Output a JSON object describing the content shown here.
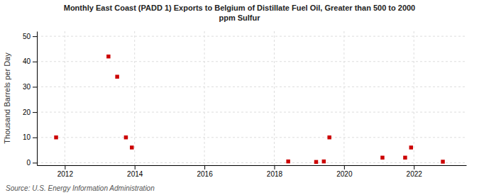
{
  "chart_data": {
    "type": "scatter",
    "title": "Monthly East Coast (PADD 1) Exports to Belgium of Distillate Fuel Oil, Greater than 500 to 2000\nppm Sulfur",
    "ylabel": "Thousand Barrels per Day",
    "annotations": [
      "Source: U.S. Energy Information Administration"
    ],
    "x": [
      2011.75,
      2013.25,
      2013.5,
      2013.75,
      2013.92,
      2018.4,
      2019.2,
      2019.42,
      2019.58,
      2021.1,
      2021.75,
      2021.92,
      2022.83
    ],
    "values": [
      10,
      42,
      34,
      10,
      6,
      0.5,
      0.3,
      0.5,
      10,
      2,
      2,
      6,
      0.4
    ],
    "color": "#cc0000",
    "marker": "square",
    "xlim": [
      2011.2,
      2023.5
    ],
    "ylim": [
      -1,
      52
    ],
    "xticks": [
      2012,
      2014,
      2016,
      2018,
      2020,
      2022
    ],
    "yticks": [
      0,
      10,
      20,
      30,
      40,
      50
    ],
    "grid": true
  }
}
